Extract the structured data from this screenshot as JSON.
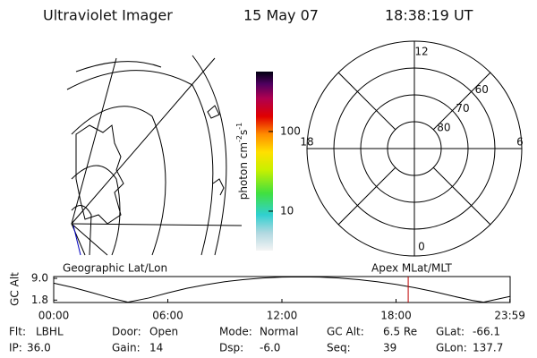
{
  "header": {
    "title": "Ultraviolet Imager",
    "date": "15 May 07",
    "time": "18:38:19 UT"
  },
  "colorbar": {
    "label": "photon cm",
    "label_sup1": "-2",
    "label_mid": "s",
    "label_sup2": "-1",
    "scale": "log",
    "lim": [
      3.2,
      565
    ],
    "ticks": [
      10,
      100
    ]
  },
  "polar": {
    "rlim": [
      90,
      50
    ],
    "rticks": [
      80,
      70,
      60
    ],
    "mlt_ticks": [
      12,
      18,
      6,
      0
    ]
  },
  "map_label": "Geographic Lat/Lon",
  "polar_label": "Apex MLat/MLT",
  "altitude_plot": {
    "type": "line",
    "ylabel": "GC Alt",
    "x": [
      0,
      1,
      2,
      3,
      3.9,
      5,
      6,
      7,
      8,
      9,
      10,
      11,
      12,
      13,
      14,
      15,
      16,
      17,
      18,
      19,
      20,
      21,
      22,
      22.6,
      23.983
    ],
    "values": [
      7.4,
      6.0,
      4.3,
      2.5,
      1.1,
      2.5,
      4.2,
      5.7,
      6.9,
      7.9,
      8.6,
      9.1,
      9.4,
      9.5,
      9.4,
      9.1,
      8.6,
      7.9,
      7.0,
      5.9,
      4.6,
      3.1,
      1.7,
      1.1,
      3.0
    ],
    "color": "#000000",
    "xlim": [
      0,
      24
    ],
    "xticks": [
      {
        "value": 0,
        "label": "00:00"
      },
      {
        "value": 6,
        "label": "06:00"
      },
      {
        "value": 12,
        "label": "12:00"
      },
      {
        "value": 18,
        "label": "18:00"
      },
      {
        "value": 23.983,
        "label": "23:59"
      }
    ],
    "ylim": [
      1.0,
      9.6
    ],
    "yticks": [
      {
        "value": 9,
        "label": "9.0"
      },
      {
        "value": 1.8,
        "label": "1.8"
      }
    ],
    "current_time": 18.639,
    "current_time_color": "#c00000"
  },
  "footer": [
    [
      {
        "label": "Flt:",
        "value": "LBHL"
      },
      {
        "label": "Door:",
        "value": "Open"
      },
      {
        "label": "Mode:",
        "value": "Normal"
      },
      {
        "label": "GC Alt:",
        "value": "6.5 Re"
      },
      {
        "label": "GLat:",
        "value": "-66.1"
      }
    ],
    [
      {
        "label": "IP:",
        "value": "36.0"
      },
      {
        "label": "Gain:",
        "value": "14"
      },
      {
        "label": "Dsp:",
        "value": "-6.0"
      },
      {
        "label": "Seq:",
        "value": "39"
      },
      {
        "label": "GLon:",
        "value": "137.7"
      }
    ]
  ]
}
